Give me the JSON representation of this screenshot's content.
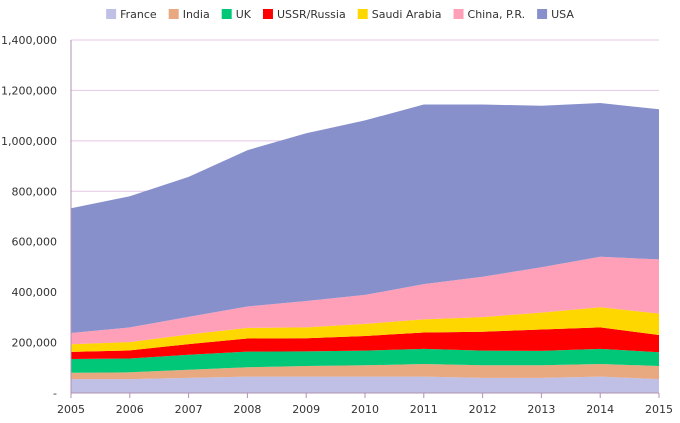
{
  "chart_data": {
    "type": "area",
    "stacked": true,
    "title": "",
    "xlabel": "",
    "ylabel": "",
    "x": [
      "2005",
      "2006",
      "2007",
      "2008",
      "2009",
      "2010",
      "2011",
      "2012",
      "2013",
      "2014",
      "2015"
    ],
    "ylim": [
      0,
      1400000
    ],
    "yticks": [
      0,
      200000,
      400000,
      600000,
      800000,
      1000000,
      1200000,
      1400000
    ],
    "ytick_labels": [
      "-",
      "200,000",
      "400,000",
      "600,000",
      "800,000",
      "1,000,000",
      "1,200,000",
      "1,400,000"
    ],
    "grid": "horizontal",
    "legend_position": "top",
    "series": [
      {
        "name": "France",
        "color": "#c0c0e6",
        "values": [
          55000,
          55000,
          60000,
          65000,
          65000,
          65000,
          65000,
          60000,
          60000,
          65000,
          55000
        ]
      },
      {
        "name": "India",
        "color": "#e8a880",
        "values": [
          25000,
          27000,
          32000,
          37000,
          42000,
          45000,
          50000,
          50000,
          50000,
          50000,
          52000
        ]
      },
      {
        "name": "UK",
        "color": "#00c878",
        "values": [
          55000,
          55000,
          60000,
          62000,
          58000,
          58000,
          60000,
          58000,
          57000,
          60000,
          55000
        ]
      },
      {
        "name": "USSR/Russia",
        "color": "#ff0000",
        "values": [
          28000,
          32000,
          42000,
          52000,
          52000,
          58000,
          65000,
          75000,
          85000,
          85000,
          68000
        ]
      },
      {
        "name": "Saudi Arabia",
        "color": "#ffd700",
        "values": [
          30000,
          33000,
          38000,
          42000,
          43000,
          48000,
          52000,
          58000,
          67000,
          80000,
          85000
        ]
      },
      {
        "name": "China, P.R.",
        "color": "#ffa0b8",
        "values": [
          45000,
          58000,
          70000,
          85000,
          105000,
          115000,
          140000,
          160000,
          180000,
          200000,
          215000
        ]
      },
      {
        "name": "USA",
        "color": "#8890cc",
        "values": [
          495000,
          520000,
          555000,
          620000,
          665000,
          692000,
          712000,
          683000,
          640000,
          610000,
          595000
        ]
      }
    ]
  }
}
